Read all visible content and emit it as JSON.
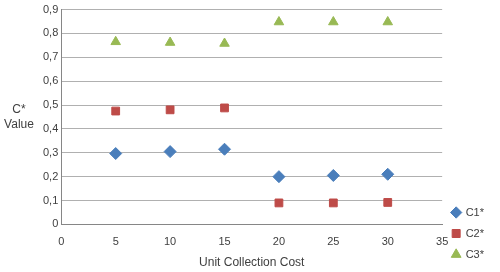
{
  "chart_data": {
    "type": "scatter",
    "x_label": "Unit Collection Cost",
    "y_label": "C*\nValue",
    "series": [
      {
        "name": "C1*",
        "color": "#4a7ebb",
        "marker": "diamond",
        "x": [
          5,
          10,
          15,
          20,
          25,
          30
        ],
        "values": [
          0.297,
          0.305,
          0.315,
          0.2,
          0.205,
          0.21
        ]
      },
      {
        "name": "C2*",
        "color": "#be4b48",
        "marker": "square",
        "x": [
          5,
          10,
          15,
          20,
          25,
          30
        ],
        "values": [
          0.475,
          0.48,
          0.488,
          0.09,
          0.09,
          0.092
        ]
      },
      {
        "name": "C3*",
        "color": "#98b954",
        "marker": "triangle",
        "x": [
          5,
          10,
          15,
          20,
          25,
          30
        ],
        "values": [
          0.765,
          0.762,
          0.758,
          0.848,
          0.848,
          0.848
        ]
      }
    ],
    "xlim": [
      0,
      35
    ],
    "xticks": [
      0,
      5,
      10,
      15,
      20,
      25,
      30,
      35
    ],
    "ylim": [
      0,
      0.9
    ],
    "yticks": [
      0,
      {
        "value": 0.1,
        "label": "0,1"
      },
      {
        "value": 0.2,
        "label": "0,2"
      },
      {
        "value": 0.3,
        "label": "0,3"
      },
      {
        "value": 0.4,
        "label": "0,4"
      },
      {
        "value": 0.5,
        "label": "0,5"
      },
      {
        "value": 0.6,
        "label": "0,6"
      },
      {
        "value": 0.7,
        "label": "0,7"
      },
      {
        "value": 0.8,
        "label": "0,8"
      },
      {
        "value": 0.9,
        "label": "0,9"
      }
    ],
    "grid": "y",
    "legend": "right"
  }
}
